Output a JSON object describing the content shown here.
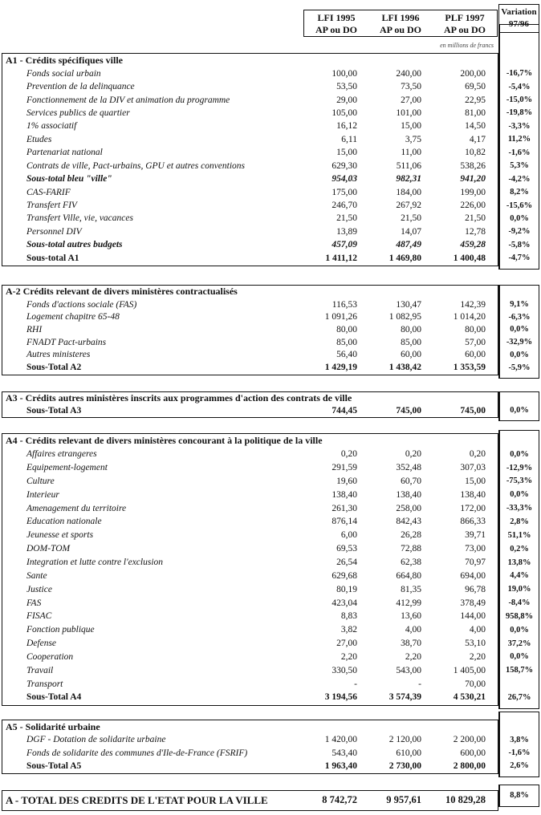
{
  "header": {
    "columns": [
      {
        "line1": "LFI 1995",
        "line2": "AP ou DO"
      },
      {
        "line1": "LFI 1996",
        "line2": "AP ou DO"
      },
      {
        "line1": "PLF 1997",
        "line2": "AP ou DO"
      }
    ],
    "variation": {
      "line1": "Variation",
      "line2": "97/96"
    },
    "unit_note": "en millions de francs"
  },
  "sections": [
    {
      "title": "A1 - Crédits spécifiques ville",
      "rows": [
        {
          "label": "Fonds social urbain",
          "v95": "100,00",
          "v96": "240,00",
          "v97": "200,00",
          "var": "-16,7%",
          "style": "item"
        },
        {
          "label": "Prevention de la delinquance",
          "v95": "53,50",
          "v96": "73,50",
          "v97": "69,50",
          "var": "-5,4%",
          "style": "item"
        },
        {
          "label": "Fonctionnement de la DIV et animation du programme",
          "v95": "29,00",
          "v96": "27,00",
          "v97": "22,95",
          "var": "-15,0%",
          "style": "item"
        },
        {
          "label": "Services publics de quartier",
          "v95": "105,00",
          "v96": "101,00",
          "v97": "81,00",
          "var": "-19,8%",
          "style": "item"
        },
        {
          "label": "1% associatif",
          "v95": "16,12",
          "v96": "15,00",
          "v97": "14,50",
          "var": "-3,3%",
          "style": "item"
        },
        {
          "label": "Etudes",
          "v95": "6,11",
          "v96": "3,75",
          "v97": "4,17",
          "var": "11,2%",
          "style": "item"
        },
        {
          "label": "Partenariat national",
          "v95": "15,00",
          "v96": "11,00",
          "v97": "10,82",
          "var": "-1,6%",
          "style": "item"
        },
        {
          "label": "Contrats de ville, Pact-urbains, GPU et autres conventions",
          "v95": "629,30",
          "v96": "511,06",
          "v97": "538,26",
          "var": "5,3%",
          "style": "item"
        },
        {
          "label": "Sous-total bleu \"ville\"",
          "v95": "954,03",
          "v96": "982,31",
          "v97": "941,20",
          "var": "-4,2%",
          "style": "subi"
        },
        {
          "label": "CAS-FARIF",
          "v95": "175,00",
          "v96": "184,00",
          "v97": "199,00",
          "var": "8,2%",
          "style": "item"
        },
        {
          "label": "Transfert FIV",
          "v95": "246,70",
          "v96": "267,92",
          "v97": "226,00",
          "var": "-15,6%",
          "style": "item"
        },
        {
          "label": "Transfert Ville, vie, vacances",
          "v95": "21,50",
          "v96": "21,50",
          "v97": "21,50",
          "var": "0,0%",
          "style": "item"
        },
        {
          "label": "Personnel DIV",
          "v95": "13,89",
          "v96": "14,07",
          "v97": "12,78",
          "var": "-9,2%",
          "style": "item"
        },
        {
          "label": "Sous-total autres budgets",
          "v95": "457,09",
          "v96": "487,49",
          "v97": "459,28",
          "var": "-5,8%",
          "style": "subi"
        },
        {
          "label": "Sous-total A1",
          "v95": "1 411,12",
          "v96": "1 469,80",
          "v97": "1 400,48",
          "var": "-4,7%",
          "style": "sub"
        }
      ]
    },
    {
      "title": "A-2 Crédits relevant de divers ministères contractualisés",
      "rows": [
        {
          "label": "Fonds d'actions sociale (FAS)",
          "v95": "116,53",
          "v96": "130,47",
          "v97": "142,39",
          "var": "9,1%",
          "style": "item"
        },
        {
          "label": "Logement chapitre 65-48",
          "v95": "1 091,26",
          "v96": "1 082,95",
          "v97": "1 014,20",
          "var": "-6,3%",
          "style": "item"
        },
        {
          "label": "RHI",
          "v95": "80,00",
          "v96": "80,00",
          "v97": "80,00",
          "var": "0,0%",
          "style": "item"
        },
        {
          "label": "FNADT Pact-urbains",
          "v95": "85,00",
          "v96": "85,00",
          "v97": "57,00",
          "var": "-32,9%",
          "style": "item"
        },
        {
          "label": "Autres ministeres",
          "v95": "56,40",
          "v96": "60,00",
          "v97": "60,00",
          "var": "0,0%",
          "style": "item"
        },
        {
          "label": "Sous-Total A2",
          "v95": "1 429,19",
          "v96": "1 438,42",
          "v97": "1 353,59",
          "var": "-5,9%",
          "style": "sub"
        }
      ]
    },
    {
      "title": "A3 - Crédits autres ministères inscrits aux programmes d'action des contrats de ville",
      "rows": [
        {
          "label": "Sous-Total A3",
          "v95": "744,45",
          "v96": "745,00",
          "v97": "745,00",
          "var": "0,0%",
          "style": "sub"
        }
      ]
    },
    {
      "title": "A4 - Crédits relevant de divers ministères concourant à la politique de la ville",
      "rows": [
        {
          "label": "Affaires etrangeres",
          "v95": "0,20",
          "v96": "0,20",
          "v97": "0,20",
          "var": "0,0%",
          "style": "item"
        },
        {
          "label": "Equipement-logement",
          "v95": "291,59",
          "v96": "352,48",
          "v97": "307,03",
          "var": "-12,9%",
          "style": "item"
        },
        {
          "label": "Culture",
          "v95": "19,60",
          "v96": "60,70",
          "v97": "15,00",
          "var": "-75,3%",
          "style": "item"
        },
        {
          "label": "Interieur",
          "v95": "138,40",
          "v96": "138,40",
          "v97": "138,40",
          "var": "0,0%",
          "style": "item"
        },
        {
          "label": "Amenagement du territoire",
          "v95": "261,30",
          "v96": "258,00",
          "v97": "172,00",
          "var": "-33,3%",
          "style": "item"
        },
        {
          "label": "Education nationale",
          "v95": "876,14",
          "v96": "842,43",
          "v97": "866,33",
          "var": "2,8%",
          "style": "item"
        },
        {
          "label": "Jeunesse et sports",
          "v95": "6,00",
          "v96": "26,28",
          "v97": "39,71",
          "var": "51,1%",
          "style": "item"
        },
        {
          "label": "DOM-TOM",
          "v95": "69,53",
          "v96": "72,88",
          "v97": "73,00",
          "var": "0,2%",
          "style": "item"
        },
        {
          "label": "Integration et lutte contre l'exclusion",
          "v95": "26,54",
          "v96": "62,38",
          "v97": "70,97",
          "var": "13,8%",
          "style": "item"
        },
        {
          "label": "Sante",
          "v95": "629,68",
          "v96": "664,80",
          "v97": "694,00",
          "var": "4,4%",
          "style": "item"
        },
        {
          "label": "Justice",
          "v95": "80,19",
          "v96": "81,35",
          "v97": "96,78",
          "var": "19,0%",
          "style": "item"
        },
        {
          "label": "FAS",
          "v95": "423,04",
          "v96": "412,99",
          "v97": "378,49",
          "var": "-8,4%",
          "style": "item"
        },
        {
          "label": "FISAC",
          "v95": "8,83",
          "v96": "13,60",
          "v97": "144,00",
          "var": "958,8%",
          "style": "item"
        },
        {
          "label": "Fonction publique",
          "v95": "3,82",
          "v96": "4,00",
          "v97": "4,00",
          "var": "0,0%",
          "style": "item"
        },
        {
          "label": "Defense",
          "v95": "27,00",
          "v96": "38,70",
          "v97": "53,10",
          "var": "37,2%",
          "style": "item"
        },
        {
          "label": "Cooperation",
          "v95": "2,20",
          "v96": "2,20",
          "v97": "2,20",
          "var": "0,0%",
          "style": "item"
        },
        {
          "label": "Travail",
          "v95": "330,50",
          "v96": "543,00",
          "v97": "1 405,00",
          "var": "158,7%",
          "style": "item"
        },
        {
          "label": "Transport",
          "v95": "-",
          "v96": "-",
          "v97": "70,00",
          "var": "",
          "style": "item"
        },
        {
          "label": "Sous-Total A4",
          "v95": "3 194,56",
          "v96": "3 574,39",
          "v97": "4 530,21",
          "var": "26,7%",
          "style": "sub"
        }
      ]
    },
    {
      "title": "A5 -  Solidarité urbaine",
      "rows": [
        {
          "label": "DGF - Dotation de solidarite urbaine",
          "v95": "1 420,00",
          "v96": "2 120,00",
          "v97": "2 200,00",
          "var": "3,8%",
          "style": "item"
        },
        {
          "label": "Fonds de solidarite des communes d'Ile-de-France (FSRIF)",
          "v95": "543,40",
          "v96": "610,00",
          "v97": "600,00",
          "var": "-1,6%",
          "style": "item"
        },
        {
          "label": "Sous-Total A5",
          "v95": "1 963,40",
          "v96": "2 730,00",
          "v97": "2 800,00",
          "var": "2,6%",
          "style": "sub"
        }
      ]
    }
  ],
  "total": {
    "label": "A - TOTAL DES CREDITS DE L'ETAT POUR LA VILLE",
    "v95": "8 742,72",
    "v96": "9 957,61",
    "v97": "10 829,28",
    "var": "8,8%"
  }
}
